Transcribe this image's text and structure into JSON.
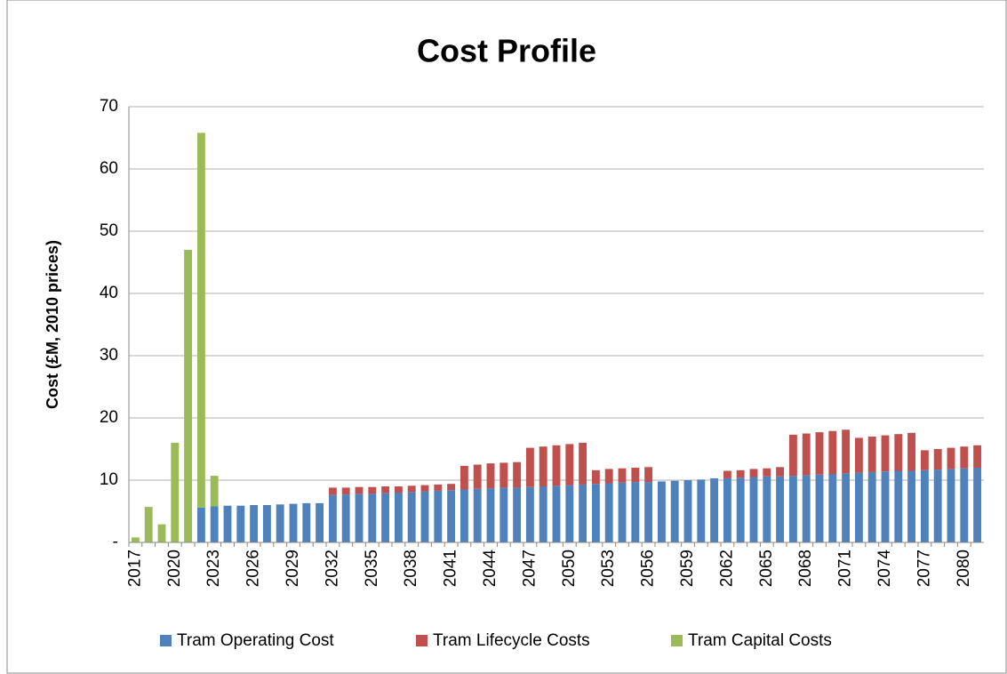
{
  "chart_data": {
    "type": "stacked_bar",
    "title": "Cost Profile",
    "y_label": "Cost (£M, 2010 prices)",
    "categories": [
      "2017",
      null,
      null,
      "2020",
      null,
      null,
      "2023",
      null,
      null,
      "2026",
      null,
      null,
      "2029",
      null,
      null,
      "2032",
      null,
      null,
      "2035",
      null,
      null,
      "2038",
      null,
      null,
      "2041",
      null,
      null,
      "2044",
      null,
      null,
      "2047",
      null,
      null,
      "2050",
      null,
      null,
      "2053",
      null,
      null,
      "2056",
      null,
      null,
      "2059",
      null,
      null,
      "2062",
      null,
      null,
      "2065",
      null,
      null,
      "2068",
      null,
      null,
      "2071",
      null,
      null,
      "2074",
      null,
      null,
      "2077",
      null,
      null,
      "2080",
      null
    ],
    "series": [
      {
        "name": "Tram Operating Cost",
        "color": "#4f81bd",
        "values": [
          0,
          0,
          0,
          0,
          0,
          5.6,
          5.8,
          5.9,
          5.9,
          6.0,
          6.0,
          6.1,
          6.2,
          6.3,
          6.3,
          7.6,
          7.7,
          7.8,
          7.8,
          7.9,
          8.0,
          8.1,
          8.2,
          8.3,
          8.4,
          8.5,
          8.6,
          8.7,
          8.8,
          8.8,
          8.9,
          9.0,
          9.1,
          9.2,
          9.3,
          9.4,
          9.5,
          9.6,
          9.7,
          9.7,
          9.8,
          9.9,
          10.0,
          10.1,
          10.3,
          10.3,
          10.4,
          10.5,
          10.6,
          10.6,
          10.7,
          10.8,
          10.9,
          11.0,
          11.1,
          11.2,
          11.3,
          11.4,
          11.5,
          11.5,
          11.6,
          11.7,
          11.8,
          11.9,
          12.0
        ]
      },
      {
        "name": "Tram Lifecycle Costs",
        "color": "#c0504d",
        "values": [
          0,
          0,
          0,
          0,
          0,
          0,
          0,
          0,
          0,
          0,
          0,
          0,
          0,
          0,
          0,
          1.2,
          1.1,
          1.1,
          1.1,
          1.1,
          1.0,
          1.0,
          1.0,
          1.0,
          1.0,
          3.8,
          3.9,
          4.0,
          4.0,
          4.1,
          6.3,
          6.4,
          6.5,
          6.6,
          6.7,
          2.2,
          2.3,
          2.3,
          2.3,
          2.4,
          0,
          0,
          0,
          0,
          0,
          1.2,
          1.2,
          1.3,
          1.3,
          1.5,
          6.6,
          6.7,
          6.8,
          6.9,
          7.0,
          5.6,
          5.7,
          5.8,
          5.9,
          6.1,
          3.2,
          3.3,
          3.4,
          3.5,
          3.6
        ]
      },
      {
        "name": "Tram Capital Costs",
        "color": "#9bbb59",
        "values": [
          0.8,
          5.7,
          2.9,
          16,
          47,
          60.2,
          4.9,
          0,
          0,
          0,
          0,
          0,
          0,
          0,
          0,
          0,
          0,
          0,
          0,
          0,
          0,
          0,
          0,
          0,
          0,
          0,
          0,
          0,
          0,
          0,
          0,
          0,
          0,
          0,
          0,
          0,
          0,
          0,
          0,
          0,
          0,
          0,
          0,
          0,
          0,
          0,
          0,
          0,
          0,
          0,
          0,
          0,
          0,
          0,
          0,
          0,
          0,
          0,
          0,
          0,
          0,
          0,
          0,
          0,
          0
        ]
      }
    ],
    "ylim": [
      0,
      70
    ],
    "yticks": [
      {
        "value": 0,
        "label": "-"
      },
      10,
      20,
      30,
      40,
      50,
      60,
      70
    ],
    "grid": true,
    "legend": "bottom"
  }
}
